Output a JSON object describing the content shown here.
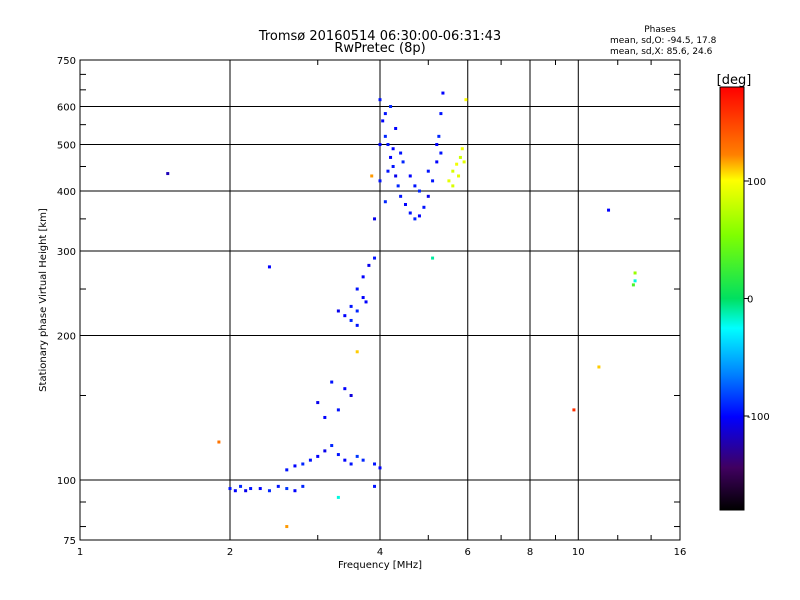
{
  "chart_data": {
    "type": "scatter",
    "title": "Tromsø 20160514 06:30:00-06:31:43",
    "subtitle": "RwPretec (8p)",
    "xlabel": "Frequency [MHz]",
    "ylabel": "Stationary phase Virtual Height [km]",
    "x_scale": "log",
    "y_scale": "log",
    "xlim": [
      1,
      16
    ],
    "ylim": [
      75,
      750
    ],
    "x_ticks": [
      1,
      2,
      4,
      6,
      8,
      10,
      16
    ],
    "x_tick_labels": [
      "1",
      "2",
      "4",
      "6",
      "8",
      "10",
      "16"
    ],
    "y_ticks": [
      75,
      100,
      200,
      300,
      400,
      500,
      600,
      750
    ],
    "y_tick_labels": [
      "75",
      "100",
      "200",
      "300",
      "400",
      "500",
      "600",
      "750"
    ],
    "grid": true,
    "phase_box": {
      "heading": "Phases",
      "line_o": "mean, sd,O: -94.5, 17.8",
      "line_x": "mean, sd,X:  85.6, 24.6"
    },
    "colorbar": {
      "label": "[deg]",
      "range": [
        -180,
        180
      ],
      "ticks": [
        100,
        0,
        -100
      ],
      "tick_labels": [
        "100",
        "0",
        "-100"
      ]
    },
    "series": [
      {
        "points": [
          [
            2.0,
            96,
            -95
          ],
          [
            2.05,
            95,
            -100
          ],
          [
            2.1,
            97,
            -90
          ],
          [
            2.15,
            95,
            -105
          ],
          [
            2.2,
            96,
            -95
          ],
          [
            2.3,
            96,
            -100
          ],
          [
            2.4,
            95,
            -90
          ],
          [
            2.5,
            97,
            -95
          ],
          [
            2.6,
            96,
            -85
          ],
          [
            2.7,
            95,
            -100
          ],
          [
            2.8,
            97,
            -90
          ],
          [
            2.6,
            105,
            -95
          ],
          [
            2.7,
            107,
            -100
          ],
          [
            2.8,
            108,
            -90
          ],
          [
            2.9,
            110,
            -95
          ],
          [
            3.0,
            112,
            -100
          ],
          [
            3.1,
            115,
            -105
          ],
          [
            3.2,
            118,
            -90
          ],
          [
            3.3,
            113,
            -95
          ],
          [
            3.4,
            110,
            -100
          ],
          [
            3.5,
            108,
            -95
          ],
          [
            3.6,
            112,
            -85
          ],
          [
            3.7,
            110,
            -90
          ],
          [
            3.9,
            108,
            -95
          ],
          [
            4.0,
            106,
            -100
          ],
          [
            3.3,
            140,
            -95
          ],
          [
            3.4,
            155,
            -100
          ],
          [
            3.5,
            150,
            -110
          ],
          [
            3.2,
            160,
            -95
          ],
          [
            3.1,
            135,
            -100
          ],
          [
            3.0,
            145,
            -105
          ],
          [
            3.5,
            230,
            -95
          ],
          [
            3.6,
            225,
            -90
          ],
          [
            3.7,
            240,
            -100
          ],
          [
            3.6,
            250,
            -95
          ],
          [
            3.7,
            265,
            -100
          ],
          [
            3.8,
            280,
            -105
          ],
          [
            3.9,
            290,
            -95
          ],
          [
            3.5,
            215,
            -90
          ],
          [
            3.4,
            220,
            -100
          ],
          [
            3.6,
            210,
            -95
          ],
          [
            3.75,
            235,
            -100
          ],
          [
            3.3,
            225,
            -105
          ],
          [
            4.0,
            620,
            -95
          ],
          [
            4.05,
            560,
            -100
          ],
          [
            4.1,
            520,
            -90
          ],
          [
            4.15,
            500,
            -95
          ],
          [
            4.2,
            470,
            -100
          ],
          [
            4.25,
            450,
            -95
          ],
          [
            4.3,
            430,
            -105
          ],
          [
            4.35,
            410,
            -90
          ],
          [
            4.4,
            390,
            -95
          ],
          [
            4.5,
            375,
            -100
          ],
          [
            4.6,
            360,
            -95
          ],
          [
            4.7,
            350,
            -90
          ],
          [
            4.8,
            355,
            -100
          ],
          [
            4.9,
            370,
            -95
          ],
          [
            5.0,
            390,
            -105
          ],
          [
            5.1,
            420,
            -95
          ],
          [
            5.2,
            460,
            -100
          ],
          [
            5.25,
            520,
            -90
          ],
          [
            5.3,
            580,
            -95
          ],
          [
            5.35,
            640,
            -100
          ],
          [
            4.1,
            580,
            -95
          ],
          [
            4.2,
            600,
            -90
          ],
          [
            4.3,
            540,
            -100
          ],
          [
            4.4,
            480,
            -95
          ],
          [
            4.6,
            430,
            -100
          ],
          [
            4.8,
            400,
            -90
          ],
          [
            5.0,
            440,
            -95
          ],
          [
            5.2,
            500,
            -100
          ],
          [
            4.15,
            440,
            -95
          ],
          [
            4.25,
            490,
            -100
          ],
          [
            4.45,
            460,
            -90
          ],
          [
            4.7,
            410,
            -95
          ],
          [
            4.0,
            500,
            -100
          ],
          [
            4.0,
            420,
            -95
          ],
          [
            4.1,
            380,
            -90
          ],
          [
            3.9,
            350,
            -105
          ],
          [
            5.3,
            480,
            -95
          ],
          [
            5.5,
            420,
            90
          ],
          [
            5.6,
            440,
            85
          ],
          [
            5.7,
            455,
            95
          ],
          [
            5.8,
            470,
            80
          ],
          [
            5.9,
            460,
            90
          ],
          [
            5.6,
            410,
            85
          ],
          [
            5.75,
            430,
            90
          ],
          [
            5.85,
            490,
            95
          ],
          [
            5.95,
            620,
            100
          ],
          [
            3.85,
            430,
            120
          ],
          [
            5.1,
            290,
            -10
          ],
          [
            3.6,
            185,
            110
          ],
          [
            1.9,
            120,
            130
          ],
          [
            2.6,
            80,
            120
          ],
          [
            3.3,
            92,
            -20
          ],
          [
            3.9,
            97,
            -95
          ],
          [
            2.4,
            278,
            -100
          ],
          [
            1.5,
            435,
            -120
          ],
          [
            9.8,
            140,
            160
          ],
          [
            11.0,
            172,
            110
          ],
          [
            11.5,
            365,
            -100
          ],
          [
            13.0,
            270,
            60
          ],
          [
            13.0,
            260,
            -20
          ],
          [
            12.9,
            255,
            30
          ]
        ]
      }
    ]
  }
}
